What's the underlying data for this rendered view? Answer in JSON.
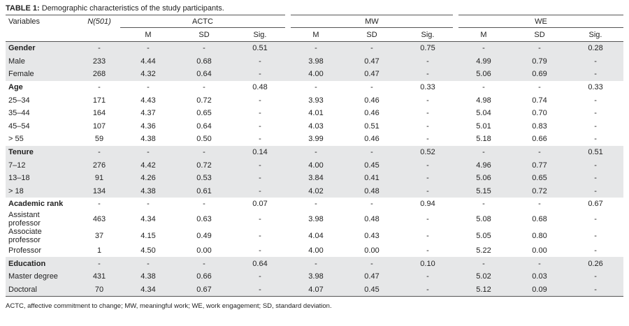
{
  "title": {
    "label": "TABLE 1:",
    "text": "Demographic characteristics of the study participants."
  },
  "header": {
    "variables": "Variables",
    "n": "N(501)",
    "groups": [
      "ACTC",
      "MW",
      "WE"
    ],
    "subheaders": [
      "M",
      "SD",
      "Sig.",
      "M",
      "SD",
      "Sig.",
      "M",
      "SD",
      "Sig."
    ]
  },
  "table": {
    "groups": [
      {
        "rows": [
          [
            "Gender",
            "-",
            "-",
            "-",
            "0.51",
            "-",
            "-",
            "0.75",
            "-",
            "-",
            "0.28"
          ],
          [
            "Male",
            "233",
            "4.44",
            "0.68",
            "-",
            "3.98",
            "0.47",
            "-",
            "4.99",
            "0.79",
            "-"
          ],
          [
            "Female",
            "268",
            "4.32",
            "0.64",
            "-",
            "4.00",
            "0.47",
            "-",
            "5.06",
            "0.69",
            "-"
          ]
        ]
      },
      {
        "rows": [
          [
            "Age",
            "-",
            "-",
            "-",
            "0.48",
            "-",
            "-",
            "0.33",
            "-",
            "-",
            "0.33"
          ],
          [
            "25–34",
            "171",
            "4.43",
            "0.72",
            "-",
            "3.93",
            "0.46",
            "-",
            "4.98",
            "0.74",
            "-"
          ],
          [
            "35–44",
            "164",
            "4.37",
            "0.65",
            "-",
            "4.01",
            "0.46",
            "-",
            "5.04",
            "0.70",
            "-"
          ],
          [
            "45–54",
            "107",
            "4.36",
            "0.64",
            "-",
            "4.03",
            "0.51",
            "-",
            "5.01",
            "0.83",
            "-"
          ],
          [
            "> 55",
            "59",
            "4.38",
            "0.50",
            "-",
            "3.99",
            "0.46",
            "-",
            "5.18",
            "0.66",
            "-"
          ]
        ]
      },
      {
        "rows": [
          [
            "Tenure",
            "-",
            "-",
            "-",
            "0.14",
            "-",
            "-",
            "0.52",
            "-",
            "-",
            "0.51"
          ],
          [
            "7–12",
            "276",
            "4.42",
            "0.72",
            "-",
            "4.00",
            "0.45",
            "-",
            "4.96",
            "0.77",
            "-"
          ],
          [
            "13–18",
            "91",
            "4.26",
            "0.53",
            "-",
            "3.84",
            "0.41",
            "-",
            "5.06",
            "0.65",
            "-"
          ],
          [
            "> 18",
            "134",
            "4.38",
            "0.61",
            "-",
            "4.02",
            "0.48",
            "-",
            "5.15",
            "0.72",
            "-"
          ]
        ]
      },
      {
        "rows": [
          [
            "Academic rank",
            "-",
            "-",
            "-",
            "0.07",
            "-",
            "-",
            "0.94",
            "-",
            "-",
            "0.67"
          ],
          [
            "Assistant professor",
            "463",
            "4.34",
            "0.63",
            "-",
            "3.98",
            "0.48",
            "-",
            "5.08",
            "0.68",
            "-"
          ],
          [
            "Associate professor",
            "37",
            "4.15",
            "0.49",
            "-",
            "4.04",
            "0.43",
            "-",
            "5.05",
            "0.80",
            "-"
          ],
          [
            "Professor",
            "1",
            "4.50",
            "0.00",
            "-",
            "4.00",
            "0.00",
            "-",
            "5.22",
            "0.00",
            "-"
          ]
        ]
      },
      {
        "rows": [
          [
            "Education",
            "-",
            "-",
            "-",
            "0.64",
            "-",
            "-",
            "0.10",
            "-",
            "-",
            "0.26"
          ],
          [
            "Master degree",
            "431",
            "4.38",
            "0.66",
            "-",
            "3.98",
            "0.47",
            "-",
            "5.02",
            "0.03",
            "-"
          ],
          [
            "Doctoral",
            "70",
            "4.34",
            "0.67",
            "-",
            "4.07",
            "0.45",
            "-",
            "5.12",
            "0.09",
            "-"
          ]
        ]
      }
    ]
  },
  "footnote": "ACTC, affective commitment to change; MW, meaningful work; WE, work engagement; SD, standard deviation."
}
